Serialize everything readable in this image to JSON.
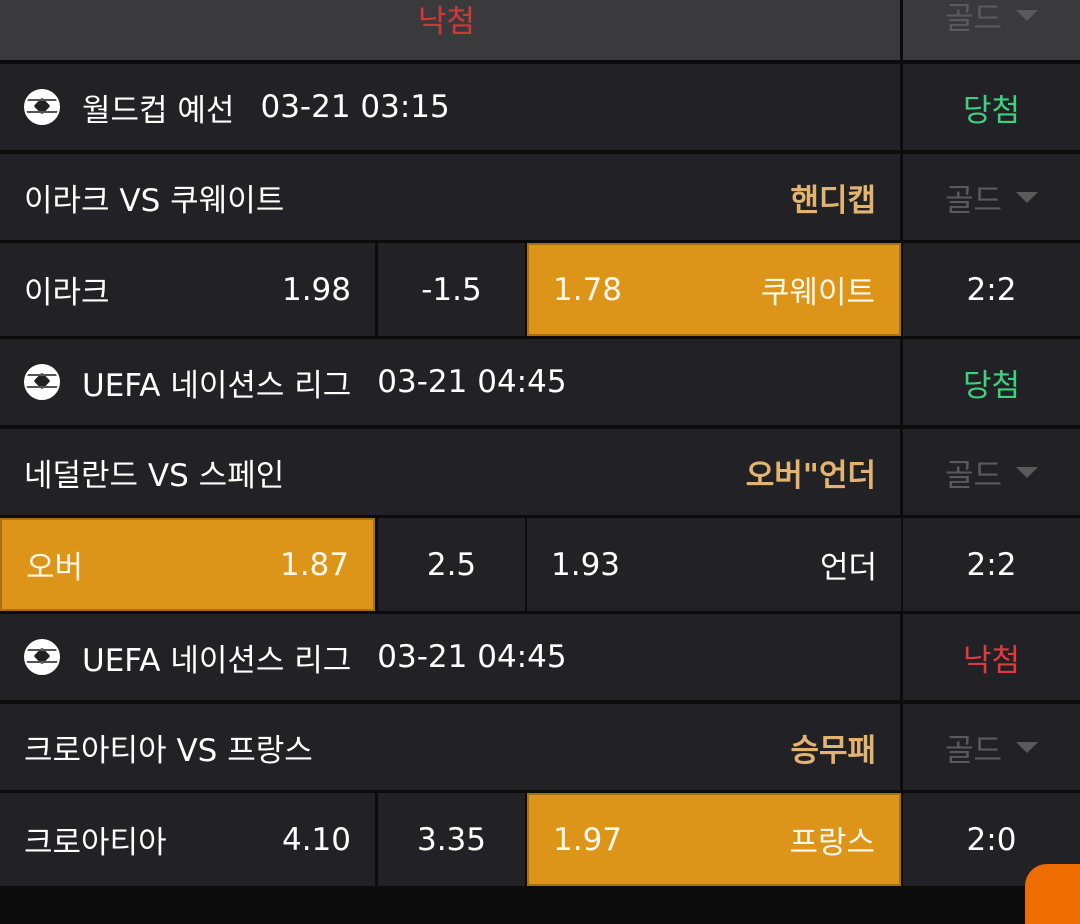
{
  "top": {
    "result": "낙첨",
    "grade": "골드"
  },
  "matches": [
    {
      "league": "월드컵 예선",
      "datetime": "03-21 03:15",
      "result": "당첨",
      "result_type": "win",
      "teams": "이라크 VS 쿠웨이트",
      "bet_type": "핸디캡",
      "grade": "골드",
      "home": "이라크",
      "home_odds": "1.98",
      "line": "-1.5",
      "away_odds": "1.78",
      "away": "쿠웨이트",
      "selected": "away",
      "score": "2:2"
    },
    {
      "league": "UEFA 네이션스 리그",
      "datetime": "03-21 04:45",
      "result": "당첨",
      "result_type": "win",
      "teams": "네덜란드 VS 스페인",
      "bet_type": "오버\"언더",
      "grade": "골드",
      "home": "오버",
      "home_odds": "1.87",
      "line": "2.5",
      "away_odds": "1.93",
      "away": "언더",
      "selected": "home",
      "score": "2:2"
    },
    {
      "league": "UEFA 네이션스 리그",
      "datetime": "03-21 04:45",
      "result": "낙첨",
      "result_type": "lose",
      "teams": "크로아티아 VS 프랑스",
      "bet_type": "승무패",
      "grade": "골드",
      "home": "크로아티아",
      "home_odds": "4.10",
      "line": "3.35",
      "away_odds": "1.97",
      "away": "프랑스",
      "selected": "away",
      "score": "2:0"
    }
  ],
  "colors": {
    "accent": "#dc9518",
    "win": "#3fd07f",
    "lose": "#e03b3b",
    "bet_type": "#e2b470"
  }
}
